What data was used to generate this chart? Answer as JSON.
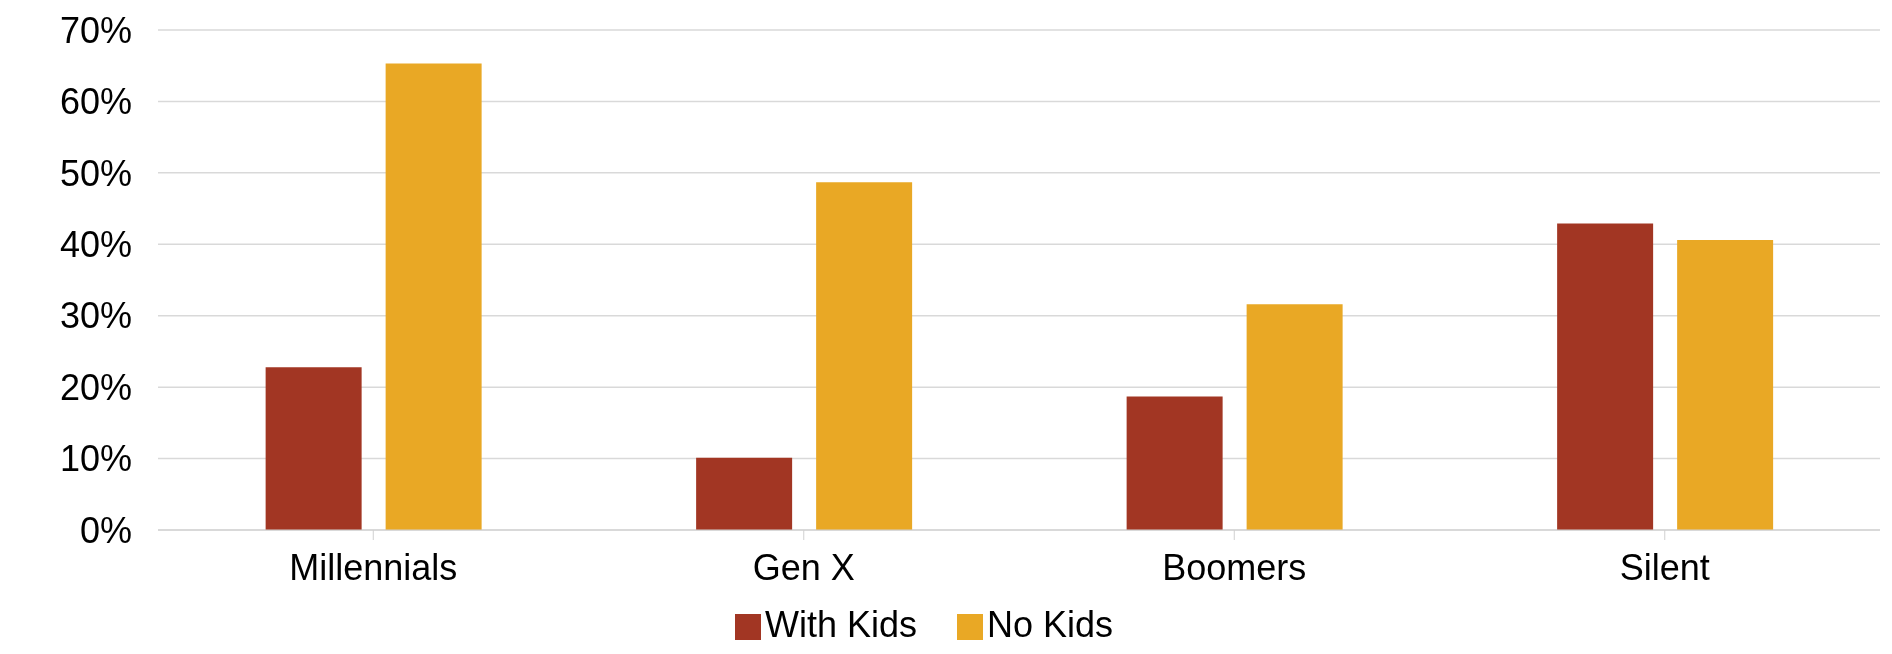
{
  "chart_data": {
    "type": "bar",
    "categories": [
      "Millennials",
      "Gen X",
      "Boomers",
      "Silent"
    ],
    "series": [
      {
        "name": "With Kids",
        "color": "#a23623",
        "values": [
          22.8,
          10.1,
          18.7,
          42.9
        ]
      },
      {
        "name": "No Kids",
        "color": "#e9a825",
        "values": [
          65.3,
          48.7,
          31.6,
          40.6
        ]
      }
    ],
    "ylim": [
      0,
      70
    ],
    "yticks": [
      {
        "value": 0,
        "label": "0%"
      },
      {
        "value": 10,
        "label": "10%"
      },
      {
        "value": 20,
        "label": "20%"
      },
      {
        "value": 30,
        "label": "30%"
      },
      {
        "value": 40,
        "label": "40%"
      },
      {
        "value": 50,
        "label": "50%"
      },
      {
        "value": 60,
        "label": "60%"
      },
      {
        "value": 70,
        "label": "70%"
      }
    ],
    "grid": "y",
    "legend": "bottom"
  }
}
